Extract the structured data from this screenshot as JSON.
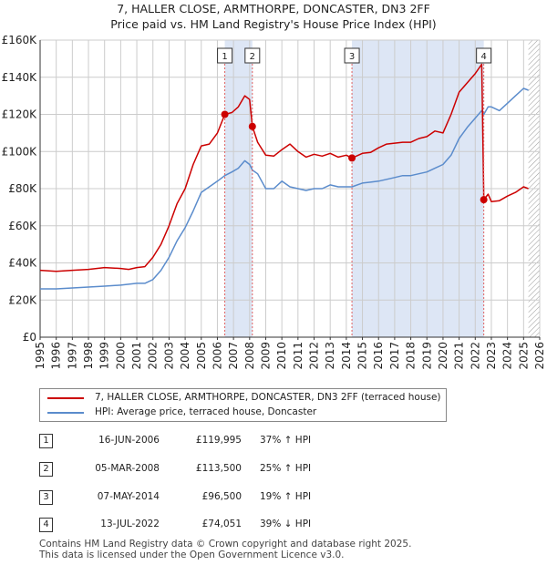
{
  "title_line1": "7, HALLER CLOSE, ARMTHORPE, DONCASTER, DN3 2FF",
  "title_line2": "Price paid vs. HM Land Registry's House Price Index (HPI)",
  "colors": {
    "property": "#cc0000",
    "hpi": "#5b8ccc",
    "shade": "#dde6f5",
    "grid": "#cccccc",
    "marker_line": "#e06060"
  },
  "chart_data": {
    "type": "line",
    "title": "Price paid vs. HM Land Registry's House Price Index (HPI)",
    "xlabel": "",
    "ylabel": "",
    "xlim": [
      1995,
      2026
    ],
    "ylim": [
      0,
      160000
    ],
    "y_ticks": [
      0,
      20000,
      40000,
      60000,
      80000,
      100000,
      120000,
      140000,
      160000
    ],
    "y_tick_labels": [
      "£0",
      "£20K",
      "£40K",
      "£60K",
      "£80K",
      "£100K",
      "£120K",
      "£140K",
      "£160K"
    ],
    "x_ticks": [
      1995,
      1996,
      1997,
      1998,
      1999,
      2000,
      2001,
      2002,
      2003,
      2004,
      2005,
      2006,
      2007,
      2008,
      2009,
      2010,
      2011,
      2012,
      2013,
      2014,
      2015,
      2016,
      2017,
      2018,
      2019,
      2020,
      2021,
      2022,
      2023,
      2024,
      2025,
      2026
    ],
    "x_tick_labels": [
      "1995",
      "1996",
      "1997",
      "1998",
      "1999",
      "2000",
      "2001",
      "2002",
      "2003",
      "2004",
      "2005",
      "2006",
      "2007",
      "2008",
      "2009",
      "2010",
      "2011",
      "2012",
      "2013",
      "2014",
      "2015",
      "2016",
      "2017",
      "2018",
      "2019",
      "2020",
      "2021",
      "2022",
      "2023",
      "2024",
      "2025",
      "2026"
    ],
    "shaded_spans": [
      [
        2006.46,
        2008.17
      ],
      [
        2014.35,
        2022.53
      ]
    ],
    "hatched_span": [
      2025.3,
      2026
    ],
    "series": [
      {
        "name": "7, HALLER CLOSE, ARMTHORPE, DONCASTER, DN3 2FF (terraced house)",
        "color": "#cc0000",
        "x": [
          1995,
          1996,
          1997,
          1998,
          1999,
          2000,
          2000.5,
          2001,
          2001.5,
          2002,
          2002.5,
          2003,
          2003.5,
          2004,
          2004.5,
          2005,
          2005.5,
          2006,
          2006.46,
          2006.9,
          2007.3,
          2007.7,
          2008.0,
          2008.17,
          2008.5,
          2009,
          2009.5,
          2010,
          2010.5,
          2011,
          2011.5,
          2012,
          2012.5,
          2013,
          2013.5,
          2014,
          2014.35,
          2015,
          2015.5,
          2016,
          2016.5,
          2017,
          2017.5,
          2018,
          2018.5,
          2019,
          2019.5,
          2020,
          2020.5,
          2021,
          2021.5,
          2022,
          2022.4,
          2022.53,
          2022.8,
          2023,
          2023.5,
          2024,
          2024.5,
          2025,
          2025.3
        ],
        "y": [
          36000,
          35500,
          36000,
          36500,
          37500,
          37000,
          36500,
          37500,
          38000,
          43000,
          50000,
          60000,
          72000,
          80000,
          93000,
          103000,
          104000,
          110000,
          119995,
          121000,
          124000,
          130000,
          128000,
          113500,
          105000,
          98000,
          97500,
          101000,
          104000,
          100000,
          97000,
          98500,
          97500,
          99000,
          97000,
          98000,
          96500,
          99000,
          99500,
          102000,
          104000,
          104500,
          105000,
          105000,
          107000,
          108000,
          111000,
          110000,
          120000,
          132000,
          137000,
          142000,
          147000,
          74051,
          77000,
          73000,
          73500,
          76000,
          78000,
          81000,
          80000
        ]
      },
      {
        "name": "HPI: Average price, terraced house, Doncaster",
        "color": "#5b8ccc",
        "x": [
          1995,
          1996,
          1997,
          1998,
          1999,
          2000,
          2000.5,
          2001,
          2001.5,
          2002,
          2002.5,
          2003,
          2003.5,
          2004,
          2004.5,
          2005,
          2005.5,
          2006,
          2006.46,
          2006.9,
          2007.3,
          2007.7,
          2008.0,
          2008.17,
          2008.5,
          2009,
          2009.5,
          2010,
          2010.5,
          2011,
          2011.5,
          2012,
          2012.5,
          2013,
          2013.5,
          2014,
          2014.35,
          2015,
          2015.5,
          2016,
          2016.5,
          2017,
          2017.5,
          2018,
          2018.5,
          2019,
          2019.5,
          2020,
          2020.5,
          2021,
          2021.5,
          2022,
          2022.4,
          2022.53,
          2022.8,
          2023,
          2023.5,
          2024,
          2024.5,
          2025,
          2025.3
        ],
        "y": [
          26000,
          26000,
          26500,
          27000,
          27500,
          28000,
          28500,
          29000,
          29000,
          31000,
          36000,
          43000,
          52000,
          59000,
          68000,
          78000,
          81000,
          84000,
          87000,
          89000,
          91000,
          95000,
          93000,
          90000,
          88000,
          80000,
          80000,
          84000,
          81000,
          80000,
          79000,
          80000,
          80000,
          82000,
          81000,
          81000,
          81000,
          83000,
          83500,
          84000,
          85000,
          86000,
          87000,
          87000,
          88000,
          89000,
          91000,
          93000,
          98000,
          107000,
          113000,
          118000,
          122000,
          120000,
          124000,
          124000,
          122000,
          126000,
          130000,
          134000,
          133000
        ]
      }
    ],
    "annotations": [
      {
        "label": "1",
        "x": 2006.46,
        "y": 119995
      },
      {
        "label": "2",
        "x": 2008.17,
        "y": 113500
      },
      {
        "label": "3",
        "x": 2014.35,
        "y": 96500
      },
      {
        "label": "4",
        "x": 2022.53,
        "y": 74051
      }
    ]
  },
  "legend": {
    "property": "7, HALLER CLOSE, ARMTHORPE, DONCASTER, DN3 2FF (terraced house)",
    "hpi": "HPI: Average price, terraced house, Doncaster"
  },
  "transactions": [
    {
      "num": "1",
      "date": "16-JUN-2006",
      "price": "£119,995",
      "hpi": "37% ↑ HPI"
    },
    {
      "num": "2",
      "date": "05-MAR-2008",
      "price": "£113,500",
      "hpi": "25% ↑ HPI"
    },
    {
      "num": "3",
      "date": "07-MAY-2014",
      "price": "£96,500",
      "hpi": "19% ↑ HPI"
    },
    {
      "num": "4",
      "date": "13-JUL-2022",
      "price": "£74,051",
      "hpi": "39% ↓ HPI"
    }
  ],
  "footer_line1": "Contains HM Land Registry data © Crown copyright and database right 2025.",
  "footer_line2": "This data is licensed under the Open Government Licence v3.0."
}
